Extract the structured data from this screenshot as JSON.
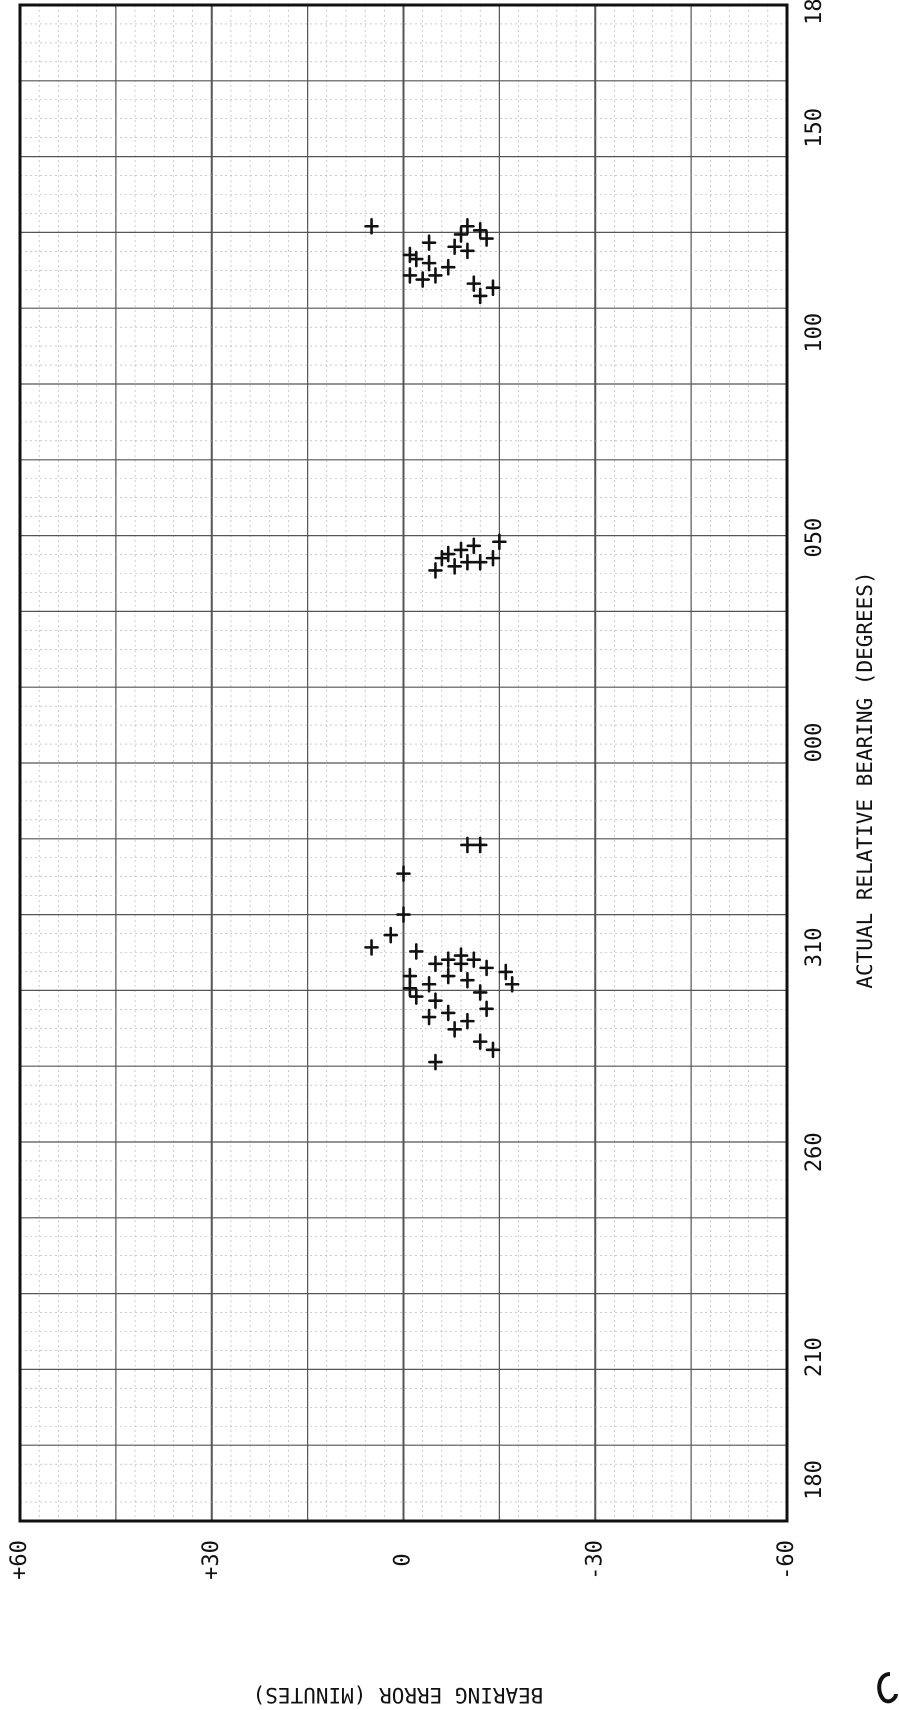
{
  "chart_data": {
    "type": "scatter",
    "title": "",
    "xlabel": "ACTUAL RELATIVE BEARING (DEGREES)",
    "ylabel": "BEARING ERROR (MINUTES)",
    "x_axis": {
      "tick_labels": [
        "180",
        "210",
        "260",
        "310",
        "000",
        "050",
        "100",
        "150",
        "180"
      ],
      "tick_values_deg_cumulative": [
        180,
        210,
        260,
        310,
        360,
        410,
        460,
        510,
        540
      ],
      "range_deg_cumulative": [
        170,
        540
      ]
    },
    "y_axis": {
      "tick_labels": [
        "+60",
        "+30",
        "0",
        "-30",
        "-60"
      ],
      "tick_values": [
        60,
        30,
        0,
        -30,
        -60
      ],
      "ylim": [
        -60,
        60
      ]
    },
    "grid": true,
    "marker": "cross",
    "series": [
      {
        "name": "",
        "x_deg_cumulative": [
          282,
          285,
          287,
          290,
          292,
          293,
          294,
          295,
          297,
          298,
          299,
          300,
          301,
          301,
          302,
          303,
          303,
          304,
          305,
          306,
          306,
          307,
          307,
          308,
          309,
          310,
          313,
          318,
          328,
          335,
          335,
          402,
          403,
          404,
          404,
          405,
          405,
          406,
          407,
          408,
          409,
          486,
          469,
          471,
          472,
          473,
          474,
          474,
          476,
          477,
          478,
          479,
          480,
          481,
          482,
          483,
          484,
          485,
          486
        ],
        "y": [
          -5,
          -14,
          -12,
          -8,
          -10,
          -4,
          -7,
          -13,
          -5,
          -2,
          -12,
          -1,
          -4,
          -17,
          -10,
          -1,
          -7,
          -16,
          -13,
          -5,
          -9,
          -11,
          -7,
          -9,
          -2,
          5,
          2,
          0,
          0,
          -10,
          -12,
          -5,
          -8,
          -10,
          -12,
          -14,
          -6,
          -7,
          -9,
          -11,
          -15,
          5,
          -12,
          -14,
          -11,
          -3,
          -5,
          -1,
          -7,
          -4,
          -2,
          -1,
          -10,
          -8,
          -4,
          -13,
          -9,
          -12,
          -10
        ]
      }
    ]
  }
}
